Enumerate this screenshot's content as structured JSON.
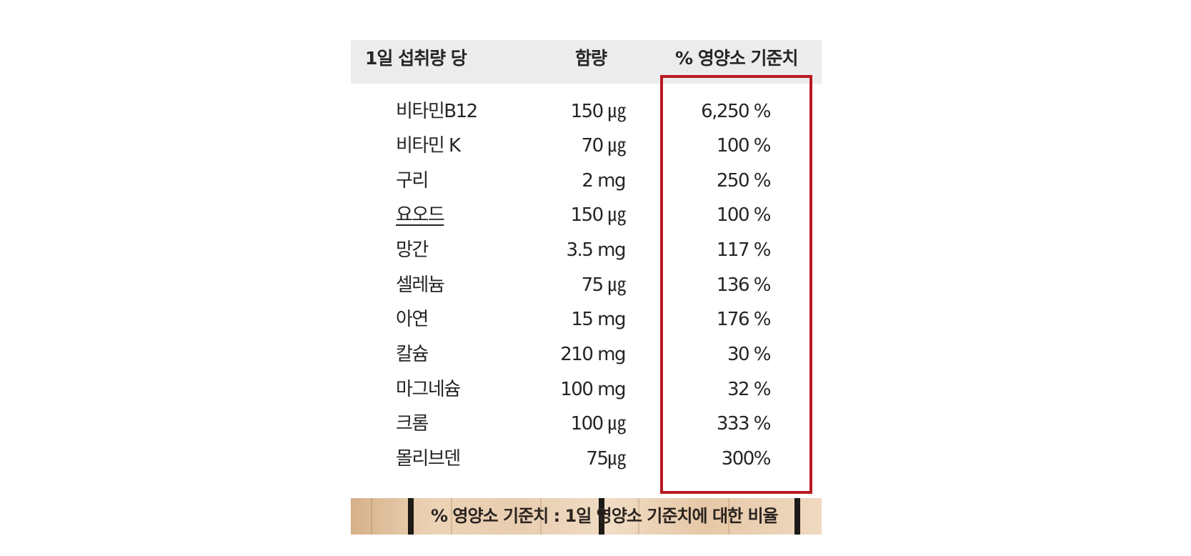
{
  "header": {
    "nutrient_col": "1일 섭취량 당",
    "amount_col": "함량",
    "dv_col": "% 영양소 기준치"
  },
  "rows": [
    {
      "name": "비타민B12",
      "amount": "150 ㎍",
      "dv": "6,250 %"
    },
    {
      "name": "비타민 K",
      "amount": "70 ㎍",
      "dv": "100 %"
    },
    {
      "name": "구리",
      "amount": "2 mg",
      "dv": "250 %"
    },
    {
      "name": "요오드",
      "amount": "150 ㎍",
      "dv": "100 %"
    },
    {
      "name": "망간",
      "amount": "3.5 mg",
      "dv": "117 %"
    },
    {
      "name": "셀레늄",
      "amount": "75 ㎍",
      "dv": "136 %"
    },
    {
      "name": "아연",
      "amount": "15 mg",
      "dv": "176 %"
    },
    {
      "name": "칼슘",
      "amount": "210 mg",
      "dv": "30 %"
    },
    {
      "name": "마그네슘",
      "amount": "100 mg",
      "dv": "32 %"
    },
    {
      "name": "크롬",
      "amount": "100 ㎍",
      "dv": "333 %"
    },
    {
      "name": "몰리브덴",
      "amount": "75㎍",
      "dv": "300%"
    }
  ],
  "footer": {
    "note": "% 영양소 기준치 : 1일 영양소 기준치에 대한 비율"
  },
  "colors": {
    "highlight_border": "#b9191f",
    "header_background": "#ececec"
  }
}
